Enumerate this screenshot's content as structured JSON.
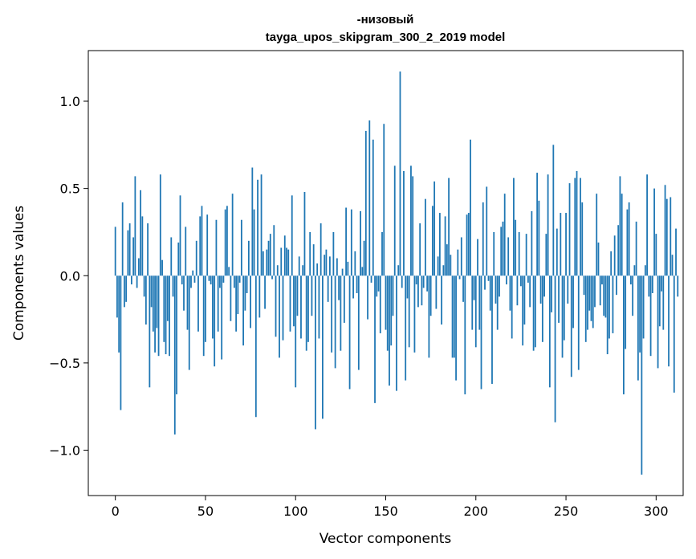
{
  "chart_data": {
    "type": "bar",
    "title_line1": "-низовый",
    "title_line2": "tayga_upos_skipgram_300_2_2019 model",
    "xlabel": "Vector components",
    "ylabel": "Components values",
    "xlim": [
      -15,
      315
    ],
    "ylim": [
      -1.26,
      1.29
    ],
    "xticks": [
      0,
      50,
      100,
      150,
      200,
      250,
      300
    ],
    "xtick_labels": [
      "0",
      "50",
      "100",
      "150",
      "200",
      "250",
      "300"
    ],
    "yticks": [
      -1.0,
      -0.5,
      0.0,
      0.5,
      1.0
    ],
    "ytick_labels": [
      "−1.0",
      "−0.5",
      "0.0",
      "0.5",
      "1.0"
    ],
    "bar_color": "#1f77b4",
    "grid": false,
    "values": [
      0.28,
      -0.24,
      -0.44,
      -0.77,
      0.42,
      -0.18,
      -0.15,
      0.26,
      0.3,
      -0.05,
      0.22,
      0.57,
      -0.07,
      0.1,
      0.49,
      0.34,
      -0.12,
      -0.28,
      0.3,
      -0.64,
      -0.18,
      -0.32,
      -0.44,
      -0.3,
      -0.46,
      0.58,
      0.09,
      -0.38,
      -0.45,
      -0.26,
      -0.46,
      0.22,
      -0.12,
      -0.91,
      -0.68,
      0.19,
      0.46,
      -0.05,
      -0.2,
      0.28,
      -0.31,
      -0.54,
      -0.07,
      0.03,
      -0.04,
      0.2,
      -0.32,
      0.34,
      0.4,
      -0.46,
      -0.38,
      0.35,
      -0.03,
      -0.05,
      -0.36,
      -0.52,
      0.32,
      -0.32,
      -0.07,
      -0.48,
      -0.04,
      0.38,
      0.4,
      0.05,
      -0.26,
      0.47,
      -0.07,
      -0.32,
      -0.22,
      -0.04,
      0.32,
      -0.4,
      -0.2,
      -0.1,
      0.2,
      -0.3,
      0.62,
      0.38,
      -0.81,
      0.55,
      -0.24,
      0.58,
      0.14,
      -0.19,
      0.15,
      0.2,
      0.24,
      -0.02,
      0.29,
      -0.35,
      0.06,
      -0.47,
      0.16,
      -0.37,
      0.23,
      0.16,
      0.15,
      -0.32,
      0.46,
      -0.29,
      -0.64,
      -0.23,
      0.11,
      -0.36,
      0.06,
      0.48,
      -0.43,
      -0.38,
      0.25,
      -0.23,
      0.18,
      -0.88,
      0.07,
      -0.36,
      0.3,
      -0.82,
      0.12,
      0.15,
      -0.15,
      0.11,
      -0.44,
      0.25,
      -0.53,
      0.1,
      -0.14,
      -0.43,
      0.04,
      -0.27,
      0.39,
      0.08,
      -0.65,
      0.38,
      -0.13,
      0.14,
      -0.1,
      -0.54,
      0.37,
      0.05,
      0.2,
      0.83,
      -0.25,
      0.89,
      -0.04,
      0.78,
      -0.73,
      -0.12,
      -0.09,
      -0.33,
      0.25,
      0.87,
      -0.31,
      -0.43,
      -0.63,
      -0.4,
      -0.23,
      0.63,
      -0.66,
      0.06,
      1.17,
      -0.07,
      0.6,
      -0.6,
      -0.13,
      -0.41,
      0.63,
      0.57,
      -0.44,
      -0.05,
      -0.18,
      0.3,
      -0.17,
      -0.07,
      0.44,
      -0.09,
      -0.47,
      -0.23,
      0.4,
      0.54,
      -0.19,
      0.11,
      0.36,
      -0.28,
      0.06,
      0.34,
      0.18,
      0.56,
      0.12,
      -0.47,
      -0.47,
      -0.6,
      0.15,
      -0.02,
      0.22,
      -0.15,
      -0.68,
      0.35,
      0.36,
      0.78,
      -0.31,
      -0.14,
      -0.41,
      0.21,
      -0.31,
      -0.65,
      0.42,
      -0.08,
      0.51,
      -0.03,
      -0.2,
      -0.62,
      0.25,
      -0.16,
      -0.31,
      -0.12,
      0.28,
      0.31,
      0.47,
      -0.05,
      0.22,
      -0.2,
      -0.36,
      0.56,
      0.32,
      -0.17,
      0.25,
      -0.06,
      -0.4,
      -0.28,
      0.24,
      -0.04,
      -0.18,
      0.37,
      -0.43,
      -0.41,
      0.59,
      0.43,
      -0.16,
      -0.38,
      -0.12,
      0.24,
      0.58,
      -0.64,
      -0.21,
      0.75,
      -0.84,
      0.27,
      -0.27,
      0.36,
      -0.47,
      -0.37,
      0.36,
      -0.16,
      0.53,
      -0.58,
      -0.3,
      0.56,
      0.6,
      -0.54,
      0.56,
      0.42,
      -0.11,
      -0.38,
      -0.31,
      -0.2,
      -0.26,
      -0.3,
      -0.18,
      0.47,
      0.19,
      -0.17,
      -0.05,
      -0.23,
      -0.24,
      -0.45,
      -0.36,
      0.14,
      -0.33,
      0.23,
      -0.11,
      0.29,
      0.57,
      0.47,
      -0.68,
      -0.42,
      0.38,
      0.42,
      -0.05,
      -0.23,
      0.06,
      0.31,
      -0.6,
      -0.44,
      -1.14,
      -0.36,
      0.06,
      0.58,
      -0.12,
      -0.46,
      -0.1,
      0.5,
      0.24,
      -0.53,
      -0.29,
      -0.09,
      -0.31,
      0.52,
      0.44,
      -0.52,
      0.45,
      0.12,
      -0.67,
      0.27,
      -0.12
    ]
  }
}
